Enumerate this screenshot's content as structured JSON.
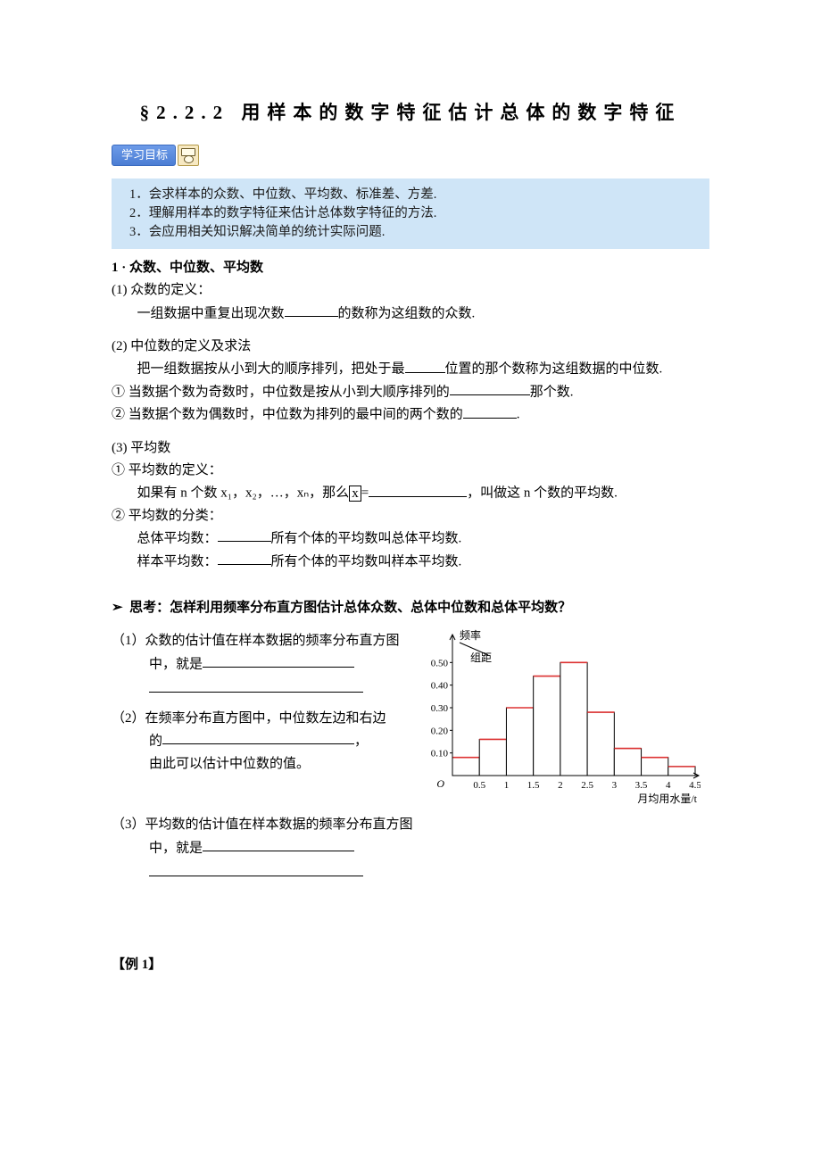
{
  "title": "§2.2.2 用样本的数字特征估计总体的数字特征",
  "badge": "学习目标",
  "objectives": [
    "1．会求样本的众数、中位数、平均数、标准差、方差.",
    "2．理解用样本的数字特征来估计总体数字特征的方法.",
    "3．会应用相关知识解决简单的统计实际问题."
  ],
  "sec1_head": "1 · 众数、中位数、平均数",
  "s1_1_t": "(1) 众数的定义：",
  "s1_1_a": "一组数据中重复出现次数",
  "s1_1_b": "的数称为这组数的众数.",
  "s1_2_t": "(2) 中位数的定义及求法",
  "s1_2_a": "把一组数据按从小到大的顺序排列，把处于最",
  "s1_2_b": "位置的那个数称为这组数据的中位数.",
  "s1_2_c1a": "① 当数据个数为奇数时，中位数是按从小到大顺序排列的",
  "s1_2_c1b": "那个数.",
  "s1_2_c2a": "② 当数据个数为偶数时，中位数为排列的最中间的两个数的",
  "s1_2_c2b": ".",
  "s1_3_t": "(3) 平均数",
  "s1_3_1": "① 平均数的定义：",
  "s1_3_1a": "如果有 n 个数 x₁，x₂，…，xₙ，那么",
  "s1_3_1b": "=",
  "s1_3_1c": "，叫做这 n 个数的平均数.",
  "s1_3_2": "② 平均数的分类：",
  "s1_3_2a": "总体平均数：",
  "s1_3_2b": "所有个体的平均数叫总体平均数.",
  "s1_3_2c": "样本平均数：",
  "s1_3_2d": "所有个体的平均数叫样本平均数.",
  "think": "思考：怎样利用频率分布直方图估计总体众数、总体中位数和总体平均数？",
  "q1a": "（1）众数的估计值在样本数据的频率分布直方图",
  "q1b": "中，就是",
  "q2a": "（2）在频率分布直方图中，中位数左边和右边",
  "q2b": "的",
  "q2c": "，",
  "q2d": "由此可以估计中位数的值。",
  "q3a": "（3）平均数的估计值在样本数据的频率分布直方图",
  "q3b": "中，就是",
  "example": "【例 1】",
  "chart": {
    "type": "bar",
    "y_label_top": "频率",
    "y_label_bottom": "组距",
    "x_label": "月均用水量/t",
    "origin": "O",
    "xticks": [
      "0.5",
      "1",
      "1.5",
      "2",
      "2.5",
      "3",
      "3.5",
      "4",
      "4.5"
    ],
    "yticks": [
      "0.10",
      "0.20",
      "0.30",
      "0.40",
      "0.50"
    ],
    "bars": [
      {
        "x0": 0.0,
        "x1": 0.5,
        "h": 0.08
      },
      {
        "x0": 0.5,
        "x1": 1.0,
        "h": 0.16
      },
      {
        "x0": 1.0,
        "x1": 1.5,
        "h": 0.3
      },
      {
        "x0": 1.5,
        "x1": 2.0,
        "h": 0.44
      },
      {
        "x0": 2.0,
        "x1": 2.5,
        "h": 0.5
      },
      {
        "x0": 2.5,
        "x1": 3.0,
        "h": 0.28
      },
      {
        "x0": 3.0,
        "x1": 3.5,
        "h": 0.12
      },
      {
        "x0": 3.5,
        "x1": 4.0,
        "h": 0.08
      },
      {
        "x0": 4.0,
        "x1": 4.5,
        "h": 0.04
      }
    ],
    "xmax": 4.5,
    "ymax": 0.6,
    "bar_fill": "#ffffff",
    "bar_stroke": "#000000",
    "top_accent": "#d33",
    "axis_color": "#000"
  }
}
